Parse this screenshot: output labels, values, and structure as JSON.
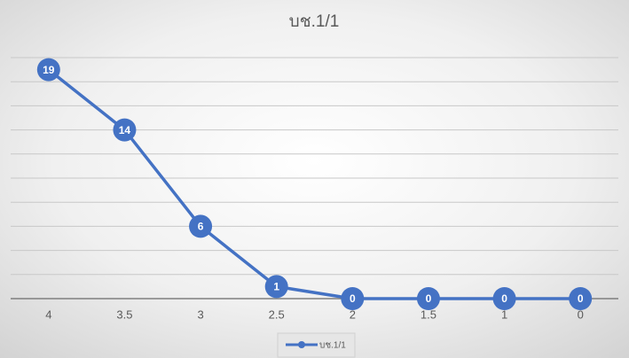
{
  "chart_data": {
    "type": "line",
    "title": "บช.1/1",
    "categories": [
      "4",
      "3.5",
      "3",
      "2.5",
      "2",
      "1.5",
      "1",
      "0"
    ],
    "series": [
      {
        "name": "บช.1/1",
        "color": "#4472c4",
        "values": [
          19,
          14,
          6,
          1,
          0,
          0,
          0,
          0
        ]
      }
    ],
    "ylim": [
      0,
      20
    ],
    "yticks": [
      0,
      2,
      4,
      6,
      8,
      10,
      12,
      14,
      16,
      18,
      20
    ],
    "grid": true,
    "legend": "bottom"
  }
}
